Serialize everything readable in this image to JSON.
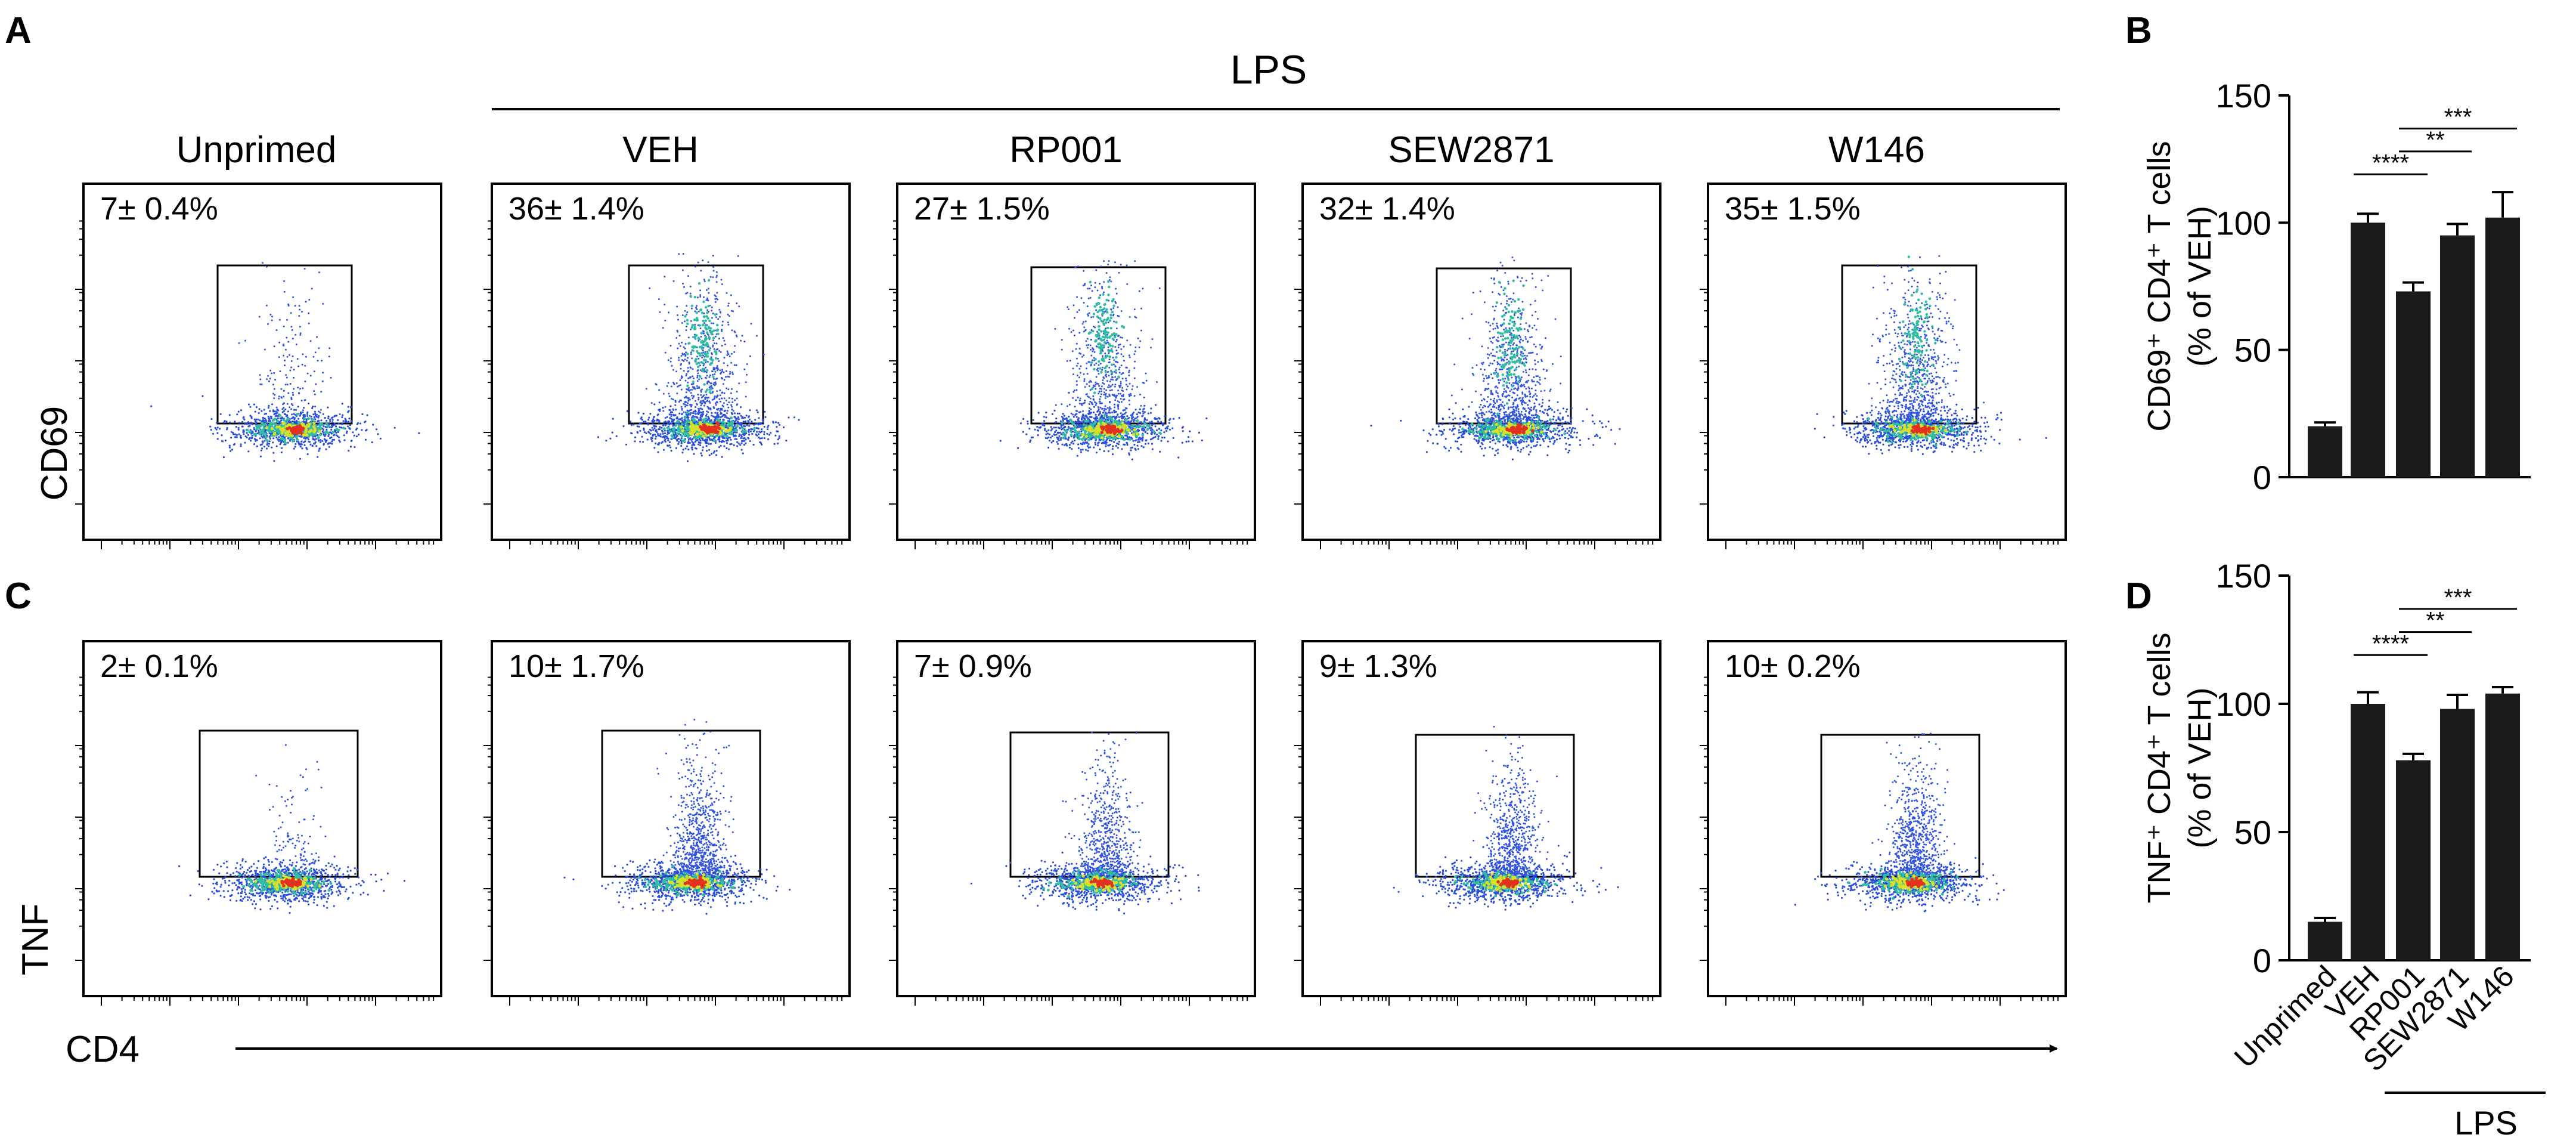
{
  "panel_letters": {
    "A": "A",
    "B": "B",
    "C": "C",
    "D": "D"
  },
  "lps_label": "LPS",
  "group_titles": [
    "Unprimed",
    "VEH",
    "RP001",
    "SEW2871",
    "W146"
  ],
  "flow_rows": [
    {
      "y_label": "CD69",
      "percentages": [
        "7± 0.4%",
        "36± 1.4%",
        "27± 1.5%",
        "32± 1.4%",
        "35± 1.5%"
      ]
    },
    {
      "y_label": "TNF",
      "percentages": [
        "2± 0.1%",
        "10± 1.7%",
        "7± 0.9%",
        "9± 1.3%",
        "10± 0.2%"
      ]
    }
  ],
  "x_axis_label": "CD4",
  "chart_data": [
    {
      "type": "bar",
      "panel": "B",
      "categories": [
        "Unprimed",
        "VEH",
        "RP001",
        "SEW2871",
        "W146"
      ],
      "values": [
        20,
        100,
        73,
        95,
        102
      ],
      "errors": [
        1.5,
        3.5,
        3.5,
        4.5,
        10
      ],
      "ylabel_lines": [
        "CD69⁺ CD4⁺ T cells",
        "(% of VEH)"
      ],
      "ylim": [
        0,
        150
      ],
      "yticks": [
        "0",
        "50",
        "100",
        "150"
      ],
      "significance": [
        {
          "label": "****",
          "from": "VEH",
          "to": "RP001"
        },
        {
          "label": "**",
          "from": "RP001",
          "to": "SEW2871"
        },
        {
          "label": "***",
          "from": "RP001",
          "to": "W146"
        }
      ]
    },
    {
      "type": "bar",
      "panel": "D",
      "categories": [
        "Unprimed",
        "VEH",
        "RP001",
        "SEW2871",
        "W146"
      ],
      "values": [
        15,
        100,
        78,
        98,
        104
      ],
      "errors": [
        1.5,
        4.5,
        2.5,
        5.5,
        2.5
      ],
      "ylabel_lines": [
        "TNF⁺ CD4⁺ T cells",
        "(% of VEH)"
      ],
      "ylim": [
        0,
        150
      ],
      "yticks": [
        "0",
        "50",
        "100",
        "150"
      ],
      "significance": [
        {
          "label": "****",
          "from": "VEH",
          "to": "RP001"
        },
        {
          "label": "**",
          "from": "RP001",
          "to": "SEW2871"
        },
        {
          "label": "***",
          "from": "RP001",
          "to": "W146"
        }
      ],
      "group_bracket_label": "LPS"
    }
  ]
}
